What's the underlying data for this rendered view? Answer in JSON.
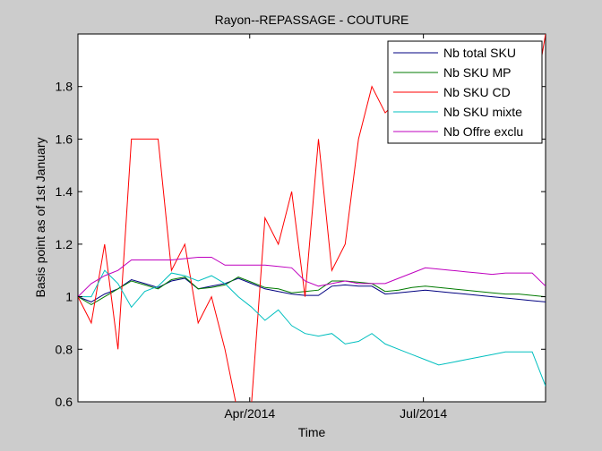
{
  "chart_data": {
    "type": "line",
    "title": "Rayon--REPASSAGE - COUTURE",
    "xlabel": "Time",
    "ylabel": "Basis point as of 1st January",
    "x": [
      "2014-01-01",
      "2014-01-08",
      "2014-01-15",
      "2014-01-22",
      "2014-01-29",
      "2014-02-05",
      "2014-02-12",
      "2014-02-19",
      "2014-02-26",
      "2014-03-05",
      "2014-03-12",
      "2014-03-19",
      "2014-03-26",
      "2014-04-02",
      "2014-04-09",
      "2014-04-16",
      "2014-04-23",
      "2014-04-30",
      "2014-05-07",
      "2014-05-14",
      "2014-05-21",
      "2014-05-28",
      "2014-06-04",
      "2014-06-11",
      "2014-06-18",
      "2014-06-25",
      "2014-07-02",
      "2014-07-09",
      "2014-07-16",
      "2014-07-23",
      "2014-07-30",
      "2014-08-06",
      "2014-08-13",
      "2014-08-20",
      "2014-08-27",
      "2014-09-03"
    ],
    "x_range": [
      "2014-01-01",
      "2014-09-03"
    ],
    "ylim": [
      0.6,
      2.0
    ],
    "yticks": [
      0.6,
      0.8,
      1.0,
      1.2,
      1.4,
      1.6,
      1.8
    ],
    "ytick_labels": [
      "0.6",
      "0.8",
      "1",
      "1.2",
      "1.4",
      "1.6",
      "1.8"
    ],
    "xticks": [
      "2014-04-01",
      "2014-07-01"
    ],
    "xtick_labels": [
      "Apr/2014",
      "Jul/2014"
    ],
    "grid": false,
    "legend_position": "top-right",
    "series": [
      {
        "name": "Nb total SKU",
        "color": "#000080",
        "values": [
          1.0,
          0.98,
          1.01,
          1.03,
          1.065,
          1.05,
          1.035,
          1.06,
          1.07,
          1.03,
          1.04,
          1.05,
          1.07,
          1.05,
          1.03,
          1.02,
          1.01,
          1.005,
          1.005,
          1.04,
          1.045,
          1.04,
          1.04,
          1.01,
          1.015,
          1.02,
          1.025,
          1.02,
          1.015,
          1.01,
          1.005,
          1.0,
          0.995,
          0.99,
          0.985,
          0.98
        ]
      },
      {
        "name": "Nb SKU MP",
        "color": "#007a00",
        "values": [
          1.0,
          0.97,
          1.0,
          1.03,
          1.06,
          1.045,
          1.03,
          1.065,
          1.075,
          1.03,
          1.035,
          1.045,
          1.075,
          1.055,
          1.035,
          1.03,
          1.015,
          1.02,
          1.025,
          1.06,
          1.06,
          1.055,
          1.05,
          1.02,
          1.025,
          1.035,
          1.04,
          1.035,
          1.03,
          1.025,
          1.02,
          1.015,
          1.01,
          1.01,
          1.005,
          1.0
        ]
      },
      {
        "name": "Nb SKU CD",
        "color": "#ff0000",
        "values": [
          1.0,
          0.9,
          1.2,
          0.8,
          1.6,
          1.6,
          1.6,
          1.1,
          1.2,
          0.9,
          1.0,
          0.8,
          0.55,
          0.6,
          1.3,
          1.2,
          1.4,
          1.0,
          1.6,
          1.1,
          1.2,
          1.6,
          1.8,
          1.7,
          1.75,
          1.7,
          1.72,
          1.74,
          1.75,
          1.76,
          1.78,
          1.8,
          1.82,
          1.85,
          1.7,
          2.0
        ]
      },
      {
        "name": "Nb SKU mixte",
        "color": "#00bfbf",
        "values": [
          1.0,
          1.0,
          1.1,
          1.05,
          0.96,
          1.02,
          1.04,
          1.09,
          1.08,
          1.06,
          1.08,
          1.05,
          1.0,
          0.96,
          0.91,
          0.95,
          0.89,
          0.86,
          0.85,
          0.86,
          0.82,
          0.83,
          0.86,
          0.82,
          0.8,
          0.78,
          0.76,
          0.74,
          0.75,
          0.76,
          0.77,
          0.78,
          0.79,
          0.79,
          0.79,
          0.66
        ]
      },
      {
        "name": "Nb Offre exclu",
        "color": "#bf00bf",
        "values": [
          1.0,
          1.05,
          1.08,
          1.1,
          1.14,
          1.14,
          1.14,
          1.14,
          1.145,
          1.15,
          1.15,
          1.12,
          1.12,
          1.12,
          1.12,
          1.115,
          1.11,
          1.06,
          1.04,
          1.05,
          1.06,
          1.05,
          1.05,
          1.05,
          1.07,
          1.09,
          1.11,
          1.105,
          1.1,
          1.095,
          1.09,
          1.085,
          1.09,
          1.09,
          1.09,
          1.04
        ]
      }
    ]
  }
}
